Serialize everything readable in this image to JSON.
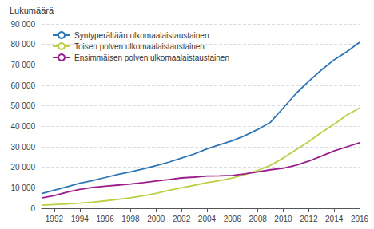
{
  "chart_data": {
    "type": "line",
    "ylabel": "Lukumäärä",
    "x": [
      1991,
      1992,
      1993,
      1994,
      1995,
      1996,
      1997,
      1998,
      1999,
      2000,
      2001,
      2002,
      2003,
      2004,
      2005,
      2006,
      2007,
      2008,
      2009,
      2010,
      2011,
      2012,
      2013,
      2014,
      2015,
      2016
    ],
    "series": [
      {
        "name": "Syntyperältään ulkomaalaistaustainen",
        "color": "#2E75B6",
        "values": [
          7200,
          8800,
          10500,
          12200,
          13500,
          15000,
          16500,
          17800,
          19200,
          20800,
          22500,
          24500,
          26500,
          29000,
          31000,
          33000,
          35500,
          38500,
          42000,
          49000,
          56000,
          62000,
          67500,
          72500,
          76500,
          81000
        ]
      },
      {
        "name": "Toisen polven ulkomaalaistaustainen",
        "color": "#BFCE46",
        "values": [
          1500,
          1800,
          2100,
          2500,
          3000,
          3600,
          4300,
          5100,
          6100,
          7300,
          8700,
          10000,
          11200,
          12500,
          13500,
          14800,
          16500,
          18500,
          21000,
          24500,
          28500,
          32500,
          37000,
          41000,
          45500,
          49000
        ]
      },
      {
        "name": "Ensimmäisen polven ulkomaalaistaustainen",
        "color": "#9B1E8A",
        "values": [
          5000,
          6200,
          7800,
          9200,
          10200,
          10800,
          11300,
          11800,
          12500,
          13300,
          14000,
          14800,
          15200,
          15700,
          15800,
          16000,
          16800,
          17800,
          18800,
          19500,
          21000,
          23000,
          25500,
          28000,
          30000,
          32000
        ]
      }
    ],
    "xlim": [
      1991,
      2016
    ],
    "xticks": [
      1992,
      1994,
      1996,
      1998,
      2000,
      2002,
      2004,
      2006,
      2008,
      2010,
      2012,
      2014,
      2016
    ],
    "ylim": [
      0,
      90000
    ],
    "yticks": [
      0,
      {
        "value": 10000,
        "label": "10 000"
      },
      {
        "value": 20000,
        "label": "20 000"
      },
      {
        "value": 30000,
        "label": "30 000"
      },
      {
        "value": 40000,
        "label": "40 000"
      },
      {
        "value": 50000,
        "label": "50 000"
      },
      {
        "value": 60000,
        "label": "60 000"
      },
      {
        "value": 70000,
        "label": "70 000"
      },
      {
        "value": 80000,
        "label": "80 000"
      },
      {
        "value": 90000,
        "label": "90 000"
      }
    ],
    "grid": true,
    "legend": "upper left"
  }
}
